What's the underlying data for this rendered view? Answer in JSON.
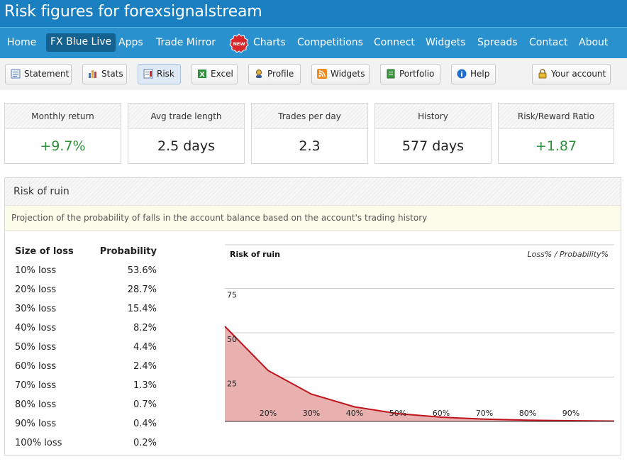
{
  "header": {
    "title": "Risk figures for forexsignalstream"
  },
  "nav": {
    "items": [
      {
        "label": "Home",
        "active": false
      },
      {
        "label": "FX Blue Live",
        "active": true
      },
      {
        "label": "Apps",
        "active": false
      },
      {
        "label": "Trade Mirror",
        "active": false
      },
      {
        "label": "Charts",
        "active": false,
        "badge": "NEW"
      },
      {
        "label": "Competitions",
        "active": false
      },
      {
        "label": "Connect",
        "active": false
      },
      {
        "label": "Widgets",
        "active": false
      },
      {
        "label": "Spreads",
        "active": false
      },
      {
        "label": "Contact",
        "active": false
      },
      {
        "label": "About",
        "active": false
      }
    ]
  },
  "toolbar": {
    "buttons": [
      {
        "label": "Statement",
        "icon": "statement-icon"
      },
      {
        "label": "Stats",
        "icon": "bar-chart-icon"
      },
      {
        "label": "Risk",
        "icon": "risk-icon",
        "active": true
      },
      {
        "label": "Excel",
        "icon": "excel-icon"
      },
      {
        "label": "Profile",
        "icon": "profile-icon"
      },
      {
        "label": "Widgets",
        "icon": "rss-icon"
      },
      {
        "label": "Portfolio",
        "icon": "portfolio-icon"
      },
      {
        "label": "Help",
        "icon": "help-icon"
      },
      {
        "label": "Your account",
        "icon": "lock-icon"
      }
    ]
  },
  "stats": [
    {
      "label": "Monthly return",
      "value": "+9.7%",
      "positive": true
    },
    {
      "label": "Avg trade length",
      "value": "2.5 days",
      "positive": false
    },
    {
      "label": "Trades per day",
      "value": "2.3",
      "positive": false
    },
    {
      "label": "History",
      "value": "577 days",
      "positive": false
    },
    {
      "label": "Risk/Reward Ratio",
      "value": "+1.87",
      "positive": true
    }
  ],
  "risk_panel": {
    "title": "Risk of ruin",
    "description": "Projection of the probability of falls in the account balance based on the account's trading history",
    "table": {
      "col1": "Size of loss",
      "col2": "Probability",
      "rows": [
        {
          "loss": "10% loss",
          "prob": "53.6%"
        },
        {
          "loss": "20% loss",
          "prob": "28.7%"
        },
        {
          "loss": "30% loss",
          "prob": "15.4%"
        },
        {
          "loss": "40% loss",
          "prob": "8.2%"
        },
        {
          "loss": "50% loss",
          "prob": "4.4%"
        },
        {
          "loss": "60% loss",
          "prob": "2.4%"
        },
        {
          "loss": "70% loss",
          "prob": "1.3%"
        },
        {
          "loss": "80% loss",
          "prob": "0.7%"
        },
        {
          "loss": "90% loss",
          "prob": "0.4%"
        },
        {
          "loss": "100% loss",
          "prob": "0.2%"
        }
      ]
    }
  },
  "colors": {
    "title_bar": "#1a7fc0",
    "nav_bar": "#2a91cf",
    "positive": "#2f8f3a",
    "area_fill": "#e9b0b0",
    "line": "#c0141c"
  },
  "chart_data": {
    "type": "area",
    "title": "Risk of ruin",
    "subtitle": "Loss% / Probability%",
    "x": [
      10,
      20,
      30,
      40,
      50,
      60,
      70,
      80,
      90,
      100
    ],
    "x_tick_labels": [
      "20%",
      "30%",
      "40%",
      "50%",
      "60%",
      "70%",
      "80%",
      "90%"
    ],
    "x_ticks": [
      20,
      30,
      40,
      50,
      60,
      70,
      80,
      90
    ],
    "series": [
      {
        "values": [
          53.6,
          28.7,
          15.4,
          8.2,
          4.4,
          2.4,
          1.3,
          0.7,
          0.4,
          0.2
        ]
      }
    ],
    "y_ticks": [
      25,
      50,
      75
    ],
    "ylim": [
      0,
      100
    ],
    "xlim": [
      10,
      100
    ],
    "grid": true,
    "legend": "none"
  }
}
